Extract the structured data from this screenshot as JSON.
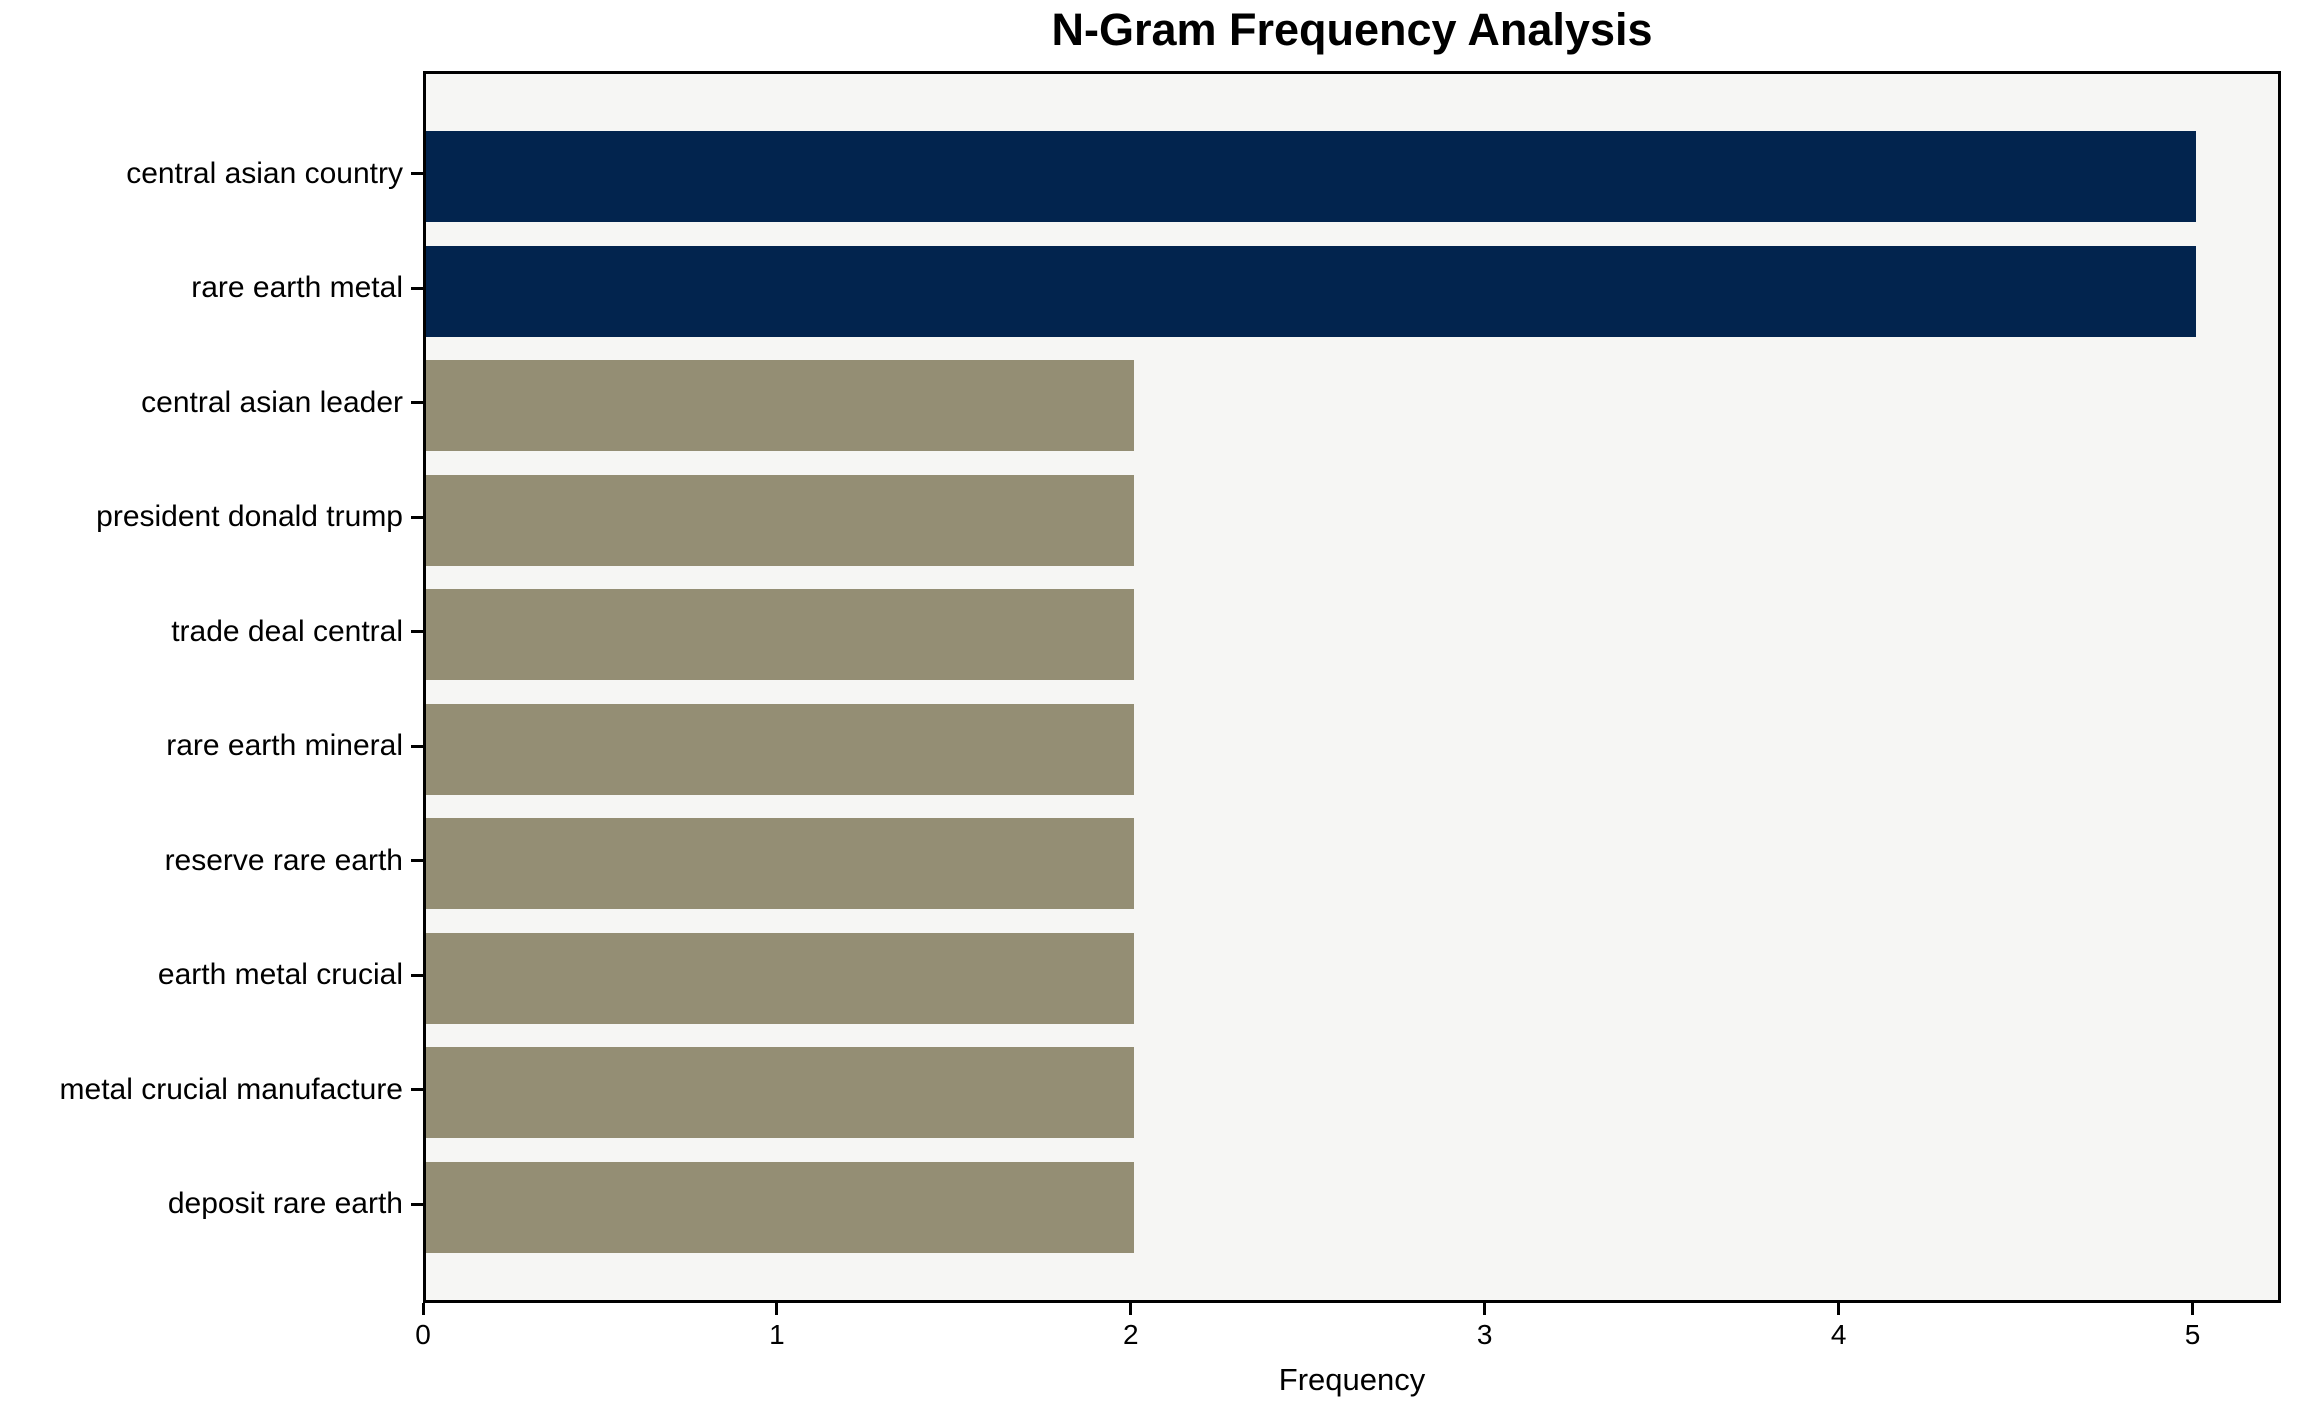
{
  "chart_data": {
    "type": "bar",
    "orientation": "horizontal",
    "title": "N-Gram Frequency Analysis",
    "xlabel": "Frequency",
    "ylabel": "",
    "categories": [
      "central asian country",
      "rare earth metal",
      "central asian leader",
      "president donald trump",
      "trade deal central",
      "rare earth mineral",
      "reserve rare earth",
      "earth metal crucial",
      "metal crucial manufacture",
      "deposit rare earth"
    ],
    "values": [
      5,
      5,
      2,
      2,
      2,
      2,
      2,
      2,
      2,
      2
    ],
    "bar_colors": [
      "#02244e",
      "#02244e",
      "#948e74",
      "#948e74",
      "#948e74",
      "#948e74",
      "#948e74",
      "#948e74",
      "#948e74",
      "#948e74"
    ],
    "xticks": [
      "0",
      "1",
      "2",
      "3",
      "4",
      "5"
    ],
    "xtick_values": [
      0,
      1,
      2,
      3,
      4,
      5
    ],
    "xlim": [
      0,
      5.25
    ],
    "grid": false,
    "legend": null,
    "colors": {
      "highlight_bar": "#02244e",
      "default_bar": "#948e74",
      "plot_background": "#f6f6f4",
      "page_background": "#ffffff",
      "axis": "#000000",
      "text": "#000000"
    }
  }
}
